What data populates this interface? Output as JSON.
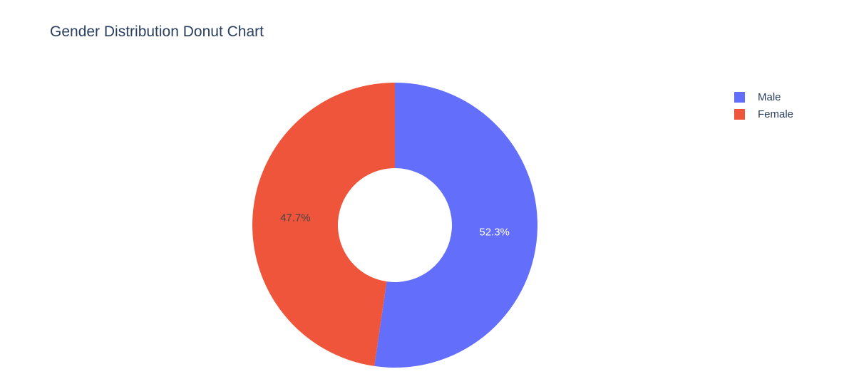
{
  "chart_data": {
    "type": "pie",
    "title": "Gender Distribution Donut Chart",
    "hole": 0.4,
    "categories": [
      "Male",
      "Female"
    ],
    "values": [
      52.3,
      47.7
    ],
    "labels": [
      "52.3%",
      "47.7%"
    ],
    "colors": [
      "#636efa",
      "#ef553b"
    ],
    "label_colors": [
      "#ffffff",
      "#444444"
    ],
    "legend_position": "top-right"
  },
  "legend": {
    "items": [
      {
        "label": "Male",
        "color": "#636efa"
      },
      {
        "label": "Female",
        "color": "#ef553b"
      }
    ]
  }
}
